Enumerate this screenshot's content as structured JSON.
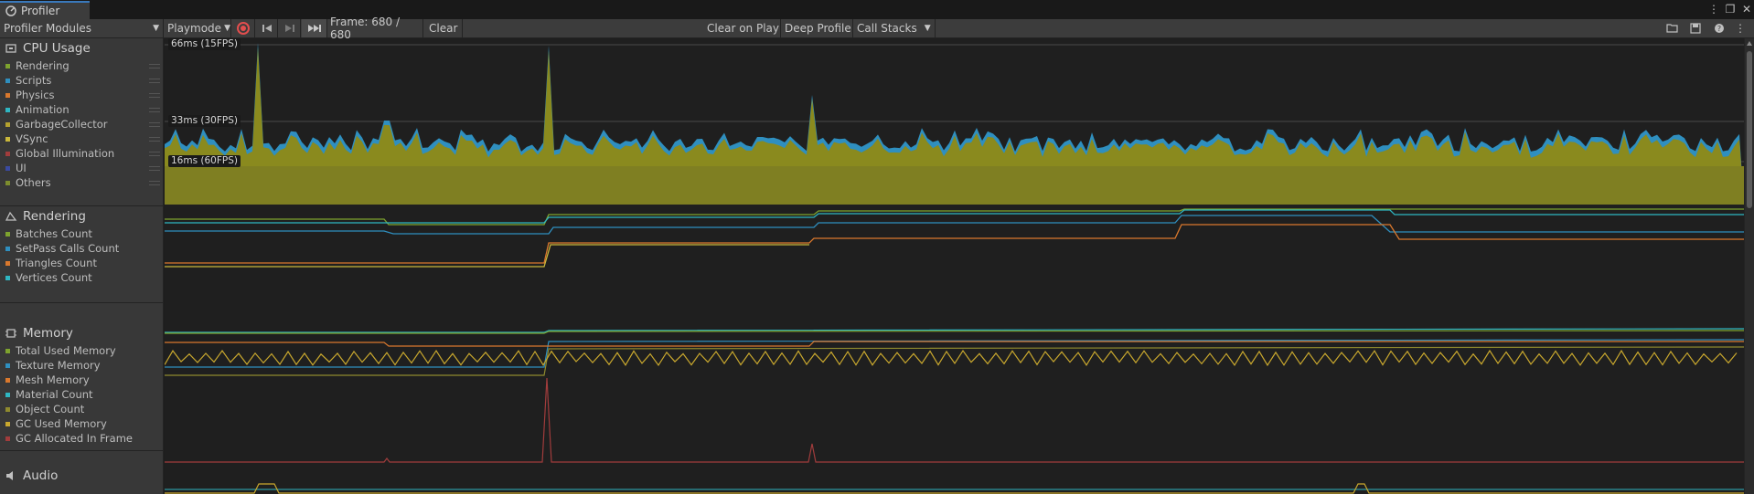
{
  "window": {
    "tab_title": "Profiler",
    "right_icons": [
      "menu-icon",
      "maximize-icon",
      "close-icon"
    ]
  },
  "toolbar": {
    "modules_dropdown": "Profiler Modules",
    "target_dropdown": "Playmode",
    "frame_label": "Frame: 680 / 680",
    "clear": "Clear",
    "clear_on_play": "Clear on Play",
    "deep_profile": "Deep Profile",
    "call_stacks": "Call Stacks",
    "record_color": "#e24e4e"
  },
  "modules": {
    "cpu": {
      "title": "CPU Usage",
      "items": [
        {
          "label": "Rendering",
          "color": "#7ea32e"
        },
        {
          "label": "Scripts",
          "color": "#2f8fbf"
        },
        {
          "label": "Physics",
          "color": "#d9782d"
        },
        {
          "label": "Animation",
          "color": "#2fb6c2"
        },
        {
          "label": "GarbageCollector",
          "color": "#b5a22f"
        },
        {
          "label": "VSync",
          "color": "#c9b73b"
        },
        {
          "label": "Global Illumination",
          "color": "#a13c3c"
        },
        {
          "label": "UI",
          "color": "#3a4aa0"
        },
        {
          "label": "Others",
          "color": "#7d8d2e"
        }
      ],
      "fps_labels": [
        "66ms (15FPS)",
        "33ms (30FPS)",
        "16ms (60FPS)"
      ]
    },
    "rendering": {
      "title": "Rendering",
      "items": [
        {
          "label": "Batches Count",
          "color": "#7ea32e"
        },
        {
          "label": "SetPass Calls Count",
          "color": "#2f8fbf"
        },
        {
          "label": "Triangles Count",
          "color": "#d9782d"
        },
        {
          "label": "Vertices Count",
          "color": "#2fb6c2"
        }
      ]
    },
    "memory": {
      "title": "Memory",
      "items": [
        {
          "label": "Total Used Memory",
          "color": "#7ea32e"
        },
        {
          "label": "Texture Memory",
          "color": "#2f8fbf"
        },
        {
          "label": "Mesh Memory",
          "color": "#d9782d"
        },
        {
          "label": "Material Count",
          "color": "#2fb6c2"
        },
        {
          "label": "Object Count",
          "color": "#8f8a2e"
        },
        {
          "label": "GC Used Memory",
          "color": "#c9a82e"
        },
        {
          "label": "GC Allocated In Frame",
          "color": "#a13c3c"
        }
      ]
    },
    "audio": {
      "title": "Audio"
    }
  }
}
